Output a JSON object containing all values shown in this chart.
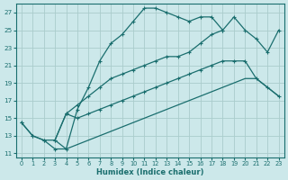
{
  "xlabel": "Humidex (Indice chaleur)",
  "bg_color": "#cce8ea",
  "line_color": "#1a6e6e",
  "grid_color": "#aacccc",
  "xlim": [
    -0.5,
    23.5
  ],
  "ylim": [
    10.5,
    28.0
  ],
  "xticks": [
    0,
    1,
    2,
    3,
    4,
    5,
    6,
    7,
    8,
    9,
    10,
    11,
    12,
    13,
    14,
    15,
    16,
    17,
    18,
    19,
    20,
    21,
    22,
    23
  ],
  "yticks": [
    11,
    13,
    15,
    17,
    19,
    21,
    23,
    25,
    27
  ],
  "curve1_x": [
    0,
    1,
    2,
    3,
    4,
    5,
    6,
    7,
    8,
    9,
    10,
    11,
    12,
    13,
    14,
    15,
    16,
    17,
    18
  ],
  "curve1_y": [
    14.5,
    13.0,
    12.5,
    11.5,
    11.5,
    16.0,
    18.5,
    21.5,
    23.5,
    24.5,
    26.0,
    27.5,
    27.5,
    27.0,
    26.5,
    26.0,
    26.5,
    26.5,
    25.0
  ],
  "curve2_x": [
    0,
    1,
    2,
    3,
    4,
    5,
    6,
    7,
    8,
    9,
    10,
    11,
    12,
    13,
    14,
    15,
    16,
    17,
    18,
    19,
    20,
    21,
    22,
    23
  ],
  "curve2_y": [
    14.5,
    13.0,
    12.5,
    12.5,
    15.5,
    16.5,
    17.5,
    18.5,
    19.5,
    20.0,
    20.5,
    21.0,
    21.5,
    22.0,
    22.0,
    22.5,
    23.5,
    24.5,
    25.0,
    26.5,
    25.0,
    24.0,
    22.5,
    25.0
  ],
  "curve3_x": [
    3,
    4,
    5,
    6,
    7,
    8,
    9,
    10,
    11,
    12,
    13,
    14,
    15,
    16,
    17,
    18,
    19,
    20,
    21,
    22,
    23
  ],
  "curve3_y": [
    12.5,
    15.5,
    15.0,
    15.5,
    16.0,
    16.5,
    17.0,
    17.5,
    18.0,
    18.5,
    19.0,
    19.5,
    20.0,
    20.5,
    21.0,
    21.5,
    21.5,
    21.5,
    19.5,
    18.5,
    17.5
  ],
  "curve4_x": [
    3,
    4,
    5,
    6,
    7,
    8,
    9,
    10,
    11,
    12,
    13,
    14,
    15,
    16,
    17,
    18,
    19,
    20,
    21,
    22,
    23
  ],
  "curve4_y": [
    12.5,
    11.5,
    12.0,
    12.5,
    13.0,
    13.5,
    14.0,
    14.5,
    15.0,
    15.5,
    16.0,
    16.5,
    17.0,
    17.5,
    18.0,
    18.5,
    19.0,
    19.5,
    19.5,
    18.5,
    17.5
  ]
}
